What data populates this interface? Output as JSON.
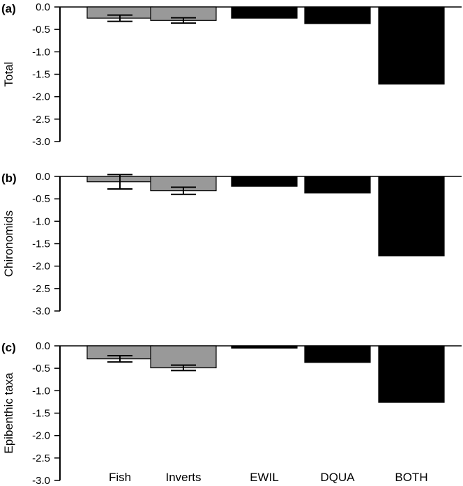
{
  "chart_data": [
    {
      "type": "bar",
      "panel_label": "(a)",
      "ylabel": "Total",
      "categories": [
        "Fish",
        "Inverts",
        "EWIL",
        "DQUA",
        "BOTH"
      ],
      "values": [
        -0.25,
        -0.3,
        -0.25,
        -0.37,
        -1.72
      ],
      "error": [
        0.07,
        0.06,
        null,
        null,
        null
      ],
      "ylim": [
        -3.0,
        0.0
      ],
      "yticks": [
        "0.0",
        "-0.5",
        "-1.0",
        "-1.5",
        "-2.0",
        "-2.5",
        "-3.0"
      ],
      "bar_colors": [
        "#999999",
        "#999999",
        "#000000",
        "#000000",
        "#000000"
      ]
    },
    {
      "type": "bar",
      "panel_label": "(b)",
      "ylabel": "Chironomids",
      "categories": [
        "Fish",
        "Inverts",
        "EWIL",
        "DQUA",
        "BOTH"
      ],
      "values": [
        -0.12,
        -0.32,
        -0.22,
        -0.37,
        -1.77
      ],
      "error": [
        0.16,
        0.08,
        null,
        null,
        null
      ],
      "ylim": [
        -3.0,
        0.0
      ],
      "yticks": [
        "0.0",
        "-0.5",
        "-1.0",
        "-1.5",
        "-2.0",
        "-2.5",
        "-3.0"
      ],
      "bar_colors": [
        "#999999",
        "#999999",
        "#000000",
        "#000000",
        "#000000"
      ]
    },
    {
      "type": "bar",
      "panel_label": "(c)",
      "ylabel": "Epibenthic taxa",
      "categories": [
        "Fish",
        "Inverts",
        "EWIL",
        "DQUA",
        "BOTH"
      ],
      "values": [
        -0.29,
        -0.49,
        -0.05,
        -0.37,
        -1.26
      ],
      "error": [
        0.07,
        0.06,
        null,
        null,
        null
      ],
      "ylim": [
        -3.0,
        0.0
      ],
      "yticks": [
        "0.0",
        "-0.5",
        "-1.0",
        "-1.5",
        "-2.0",
        "-2.5",
        "-3.0"
      ],
      "bar_colors": [
        "#999999",
        "#999999",
        "#000000",
        "#000000",
        "#000000"
      ],
      "show_category_labels": true
    }
  ]
}
